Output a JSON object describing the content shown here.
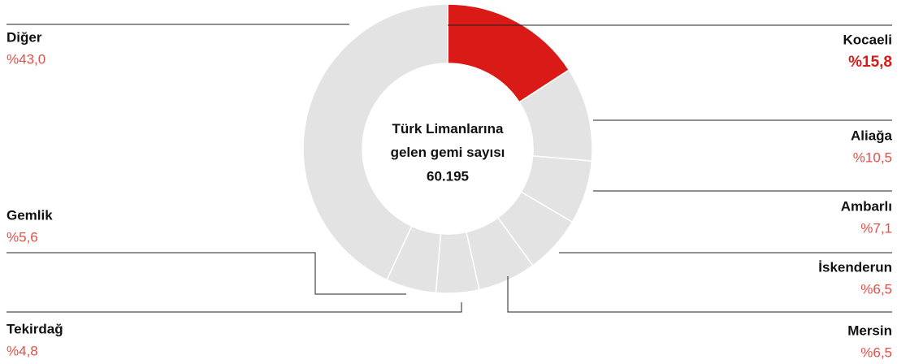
{
  "chart_data": {
    "type": "donut",
    "title": "Türk Limanlarına gelen gemi sayısı",
    "center_value": "60.195",
    "categories": [
      "Kocaeli",
      "Aliağa",
      "Ambarlı",
      "İskenderun",
      "Mersin",
      "Tekirdağ",
      "Gemlik",
      "Diğer"
    ],
    "values": [
      15.8,
      10.5,
      7.1,
      6.5,
      6.5,
      4.8,
      5.6,
      43.0
    ],
    "value_labels": [
      "%15,8",
      "%10,5",
      "%7,1",
      "%6,5",
      "%6,5",
      "%4,8",
      "%5,6",
      "%43,0"
    ],
    "colors": [
      "#d91a17",
      "#e3e3e3",
      "#e3e3e3",
      "#e3e3e3",
      "#e3e3e3",
      "#e3e3e3",
      "#e3e3e3",
      "#e3e3e3"
    ],
    "highlight_color": "#d91a17"
  }
}
